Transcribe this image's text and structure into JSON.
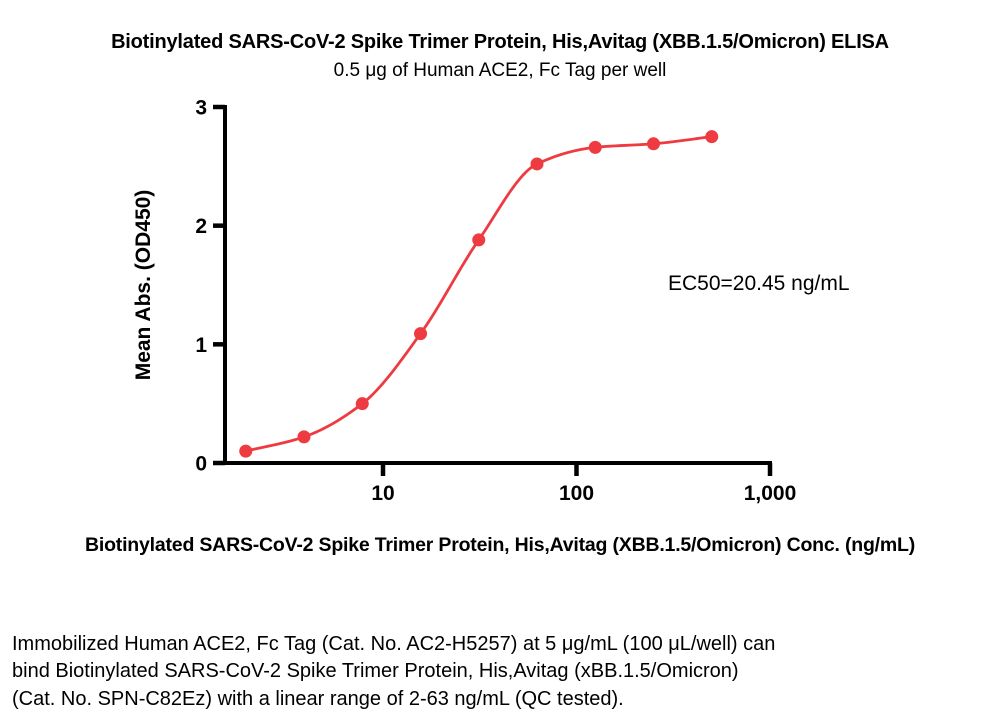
{
  "chart_data": {
    "type": "scatter",
    "title": "Biotinylated SARS-CoV-2 Spike Trimer Protein, His,Avitag (XBB.1.5/Omicron) ELISA",
    "subtitle": "0.5 μg of Human ACE2, Fc Tag per well",
    "xlabel": "Biotinylated SARS-CoV-2 Spike Trimer Protein, His,Avitag (XBB.1.5/Omicron) Conc. (ng/mL)",
    "ylabel": "Mean Abs. (OD450)",
    "x_scale": "log10",
    "x_range": [
      1.53,
      1000
    ],
    "y_range": [
      0,
      3
    ],
    "x_ticks": [
      10,
      100,
      1000
    ],
    "x_tick_labels": [
      "10",
      "100",
      "1,000"
    ],
    "y_ticks": [
      0,
      1,
      2,
      3
    ],
    "y_tick_labels": [
      "0",
      "1",
      "2",
      "3"
    ],
    "grid": false,
    "legend": "none",
    "annotation": "EC50=20.45 ng/mL",
    "ec50_ng_ml": 20.45,
    "series": [
      {
        "x": [
          1.953,
          3.906,
          7.813,
          15.63,
          31.25,
          62.5,
          125,
          250,
          500
        ],
        "y": [
          0.1,
          0.22,
          0.5,
          1.09,
          1.88,
          2.52,
          2.66,
          2.69,
          2.75
        ]
      }
    ],
    "marker_color": "#ED3B41",
    "line_color": "#ED3B41",
    "axis_color": "#000000"
  },
  "caption": {
    "lines": [
      "Immobilized Human ACE2, Fc Tag (Cat. No. AC2-H5257) at 5 μg/mL (100 μL/well) can",
      "bind Biotinylated SARS-CoV-2 Spike Trimer Protein, His,Avitag (xBB.1.5/Omicron)",
      "(Cat. No. SPN-C82Ez) with a linear range of 2-63 ng/mL (QC tested)."
    ]
  }
}
